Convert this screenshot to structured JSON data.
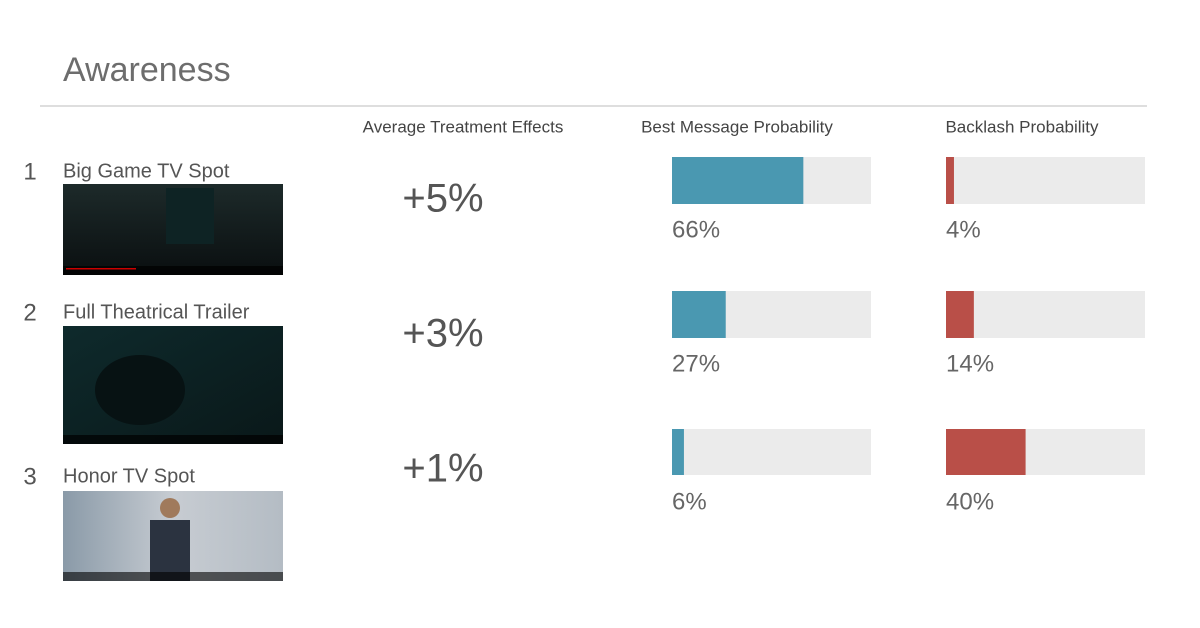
{
  "header": {
    "title": "Awareness"
  },
  "columns": [
    "Average Treatment Effects",
    "Best Message Probability",
    "Backlash Probability"
  ],
  "scale": [
    0,
    100
  ],
  "colors": {
    "best": "#4a98b1",
    "backlash": "#b94f48",
    "track": "#ebebeb"
  },
  "rows": [
    {
      "rank": 1,
      "name": "Big Game TV Spot",
      "effect": "+5%",
      "best": {
        "value": 66,
        "label": "66%"
      },
      "backlash": {
        "value": 4,
        "label": "4%"
      }
    },
    {
      "rank": 2,
      "name": "Full Theatrical Trailer",
      "effect": "+3%",
      "best": {
        "value": 27,
        "label": "27%"
      },
      "backlash": {
        "value": 14,
        "label": "14%"
      }
    },
    {
      "rank": 3,
      "name": "Honor TV Spot",
      "effect": "+1%",
      "best": {
        "value": 6,
        "label": "6%"
      },
      "backlash": {
        "value": 40,
        "label": "40%"
      }
    }
  ]
}
